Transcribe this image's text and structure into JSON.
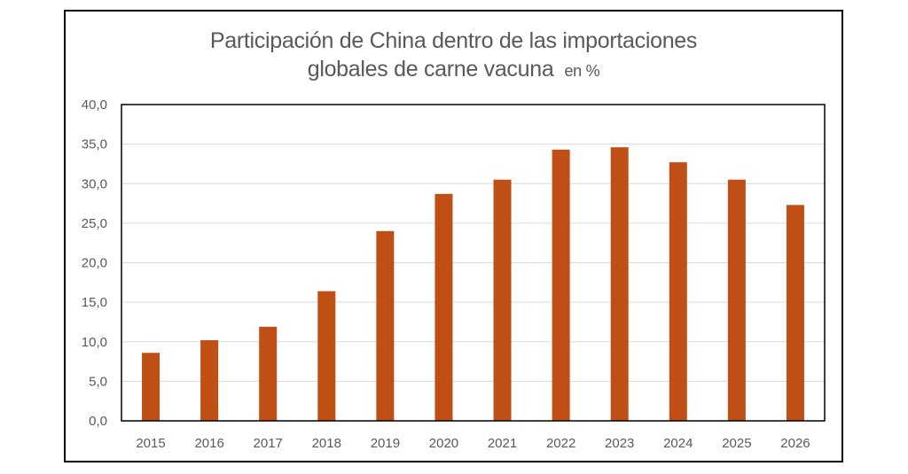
{
  "chart_data": {
    "type": "bar",
    "title_line1": "Participación de China dentro de las importaciones",
    "title_line2": "globales de carne vacuna",
    "title_unit": "en %",
    "xlabel": "",
    "ylabel": "",
    "categories": [
      "2015",
      "2016",
      "2017",
      "2018",
      "2019",
      "2020",
      "2021",
      "2022",
      "2023",
      "2024",
      "2025",
      "2026"
    ],
    "values": [
      8.6,
      10.2,
      11.9,
      16.4,
      24.0,
      28.7,
      30.5,
      34.3,
      34.6,
      32.7,
      30.5,
      27.3
    ],
    "ylim": [
      0,
      40
    ],
    "yticks": [
      "0,0",
      "5,0",
      "10,0",
      "15,0",
      "20,0",
      "25,0",
      "30,0",
      "35,0",
      "40,0"
    ],
    "grid": true,
    "legend": "none",
    "bar_color": "#C04F15"
  }
}
